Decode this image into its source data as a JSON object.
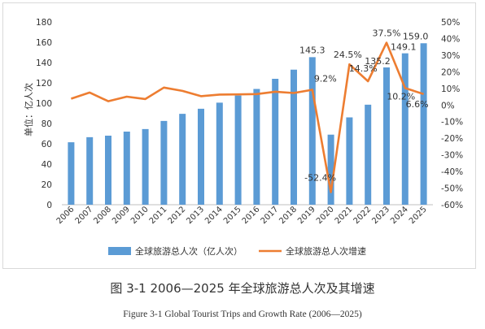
{
  "caption_cn": "图 3-1  2006—2025 年全球旅游总人次及其增速",
  "caption_en": "Figure 3-1  Global Tourist Trips and Growth Rate (2006—2025)",
  "chart_data": {
    "type": "bar",
    "categories": [
      "2006",
      "2007",
      "2008",
      "2009",
      "2010",
      "2011",
      "2012",
      "2013",
      "2014",
      "2015",
      "2016",
      "2017",
      "2018",
      "2019",
      "2020",
      "2021",
      "2022",
      "2023",
      "2024",
      "2025"
    ],
    "ylabel": "单位：亿人次",
    "ylim": [
      0,
      180
    ],
    "y2lim": [
      -60,
      50
    ],
    "y_ticks": [
      "0",
      "20",
      "40",
      "60",
      "80",
      "100",
      "120",
      "140",
      "160",
      "180"
    ],
    "y2_ticks": [
      "-60%",
      "-50%",
      "-40%",
      "-30%",
      "-20%",
      "-10%",
      "0%",
      "10%",
      "20%",
      "30%",
      "40%",
      "50%"
    ],
    "grid": false,
    "legend_position": "bottom",
    "colors": {
      "bar": "#5b9bd5",
      "line": "#ed7d31"
    },
    "series": [
      {
        "name": "全球旅游总人次（亿人次）",
        "type": "bar",
        "axis": "left",
        "values": [
          61.5,
          66.5,
          68,
          72,
          74.5,
          82.5,
          89.5,
          94.5,
          100.5,
          107.5,
          114,
          124,
          133,
          145.3,
          69,
          86,
          98.5,
          135.2,
          149.1,
          159.0
        ]
      },
      {
        "name": "全球旅游总人次增速",
        "type": "line",
        "axis": "right",
        "values": [
          3.8,
          7.5,
          2.3,
          5.0,
          3.6,
          10.5,
          8.5,
          5.3,
          6.3,
          6.4,
          6.6,
          8.0,
          7.2,
          9.2,
          -52.4,
          24.5,
          14.3,
          37.5,
          10.2,
          6.6
        ]
      }
    ],
    "data_labels": [
      {
        "series": 0,
        "index": 13,
        "text": "145.3"
      },
      {
        "series": 1,
        "index": 13,
        "text": "9.2%"
      },
      {
        "series": 1,
        "index": 14,
        "text": "-52.4%"
      },
      {
        "series": 1,
        "index": 15,
        "text": "24.5%"
      },
      {
        "series": 1,
        "index": 16,
        "text": "14.3%"
      },
      {
        "series": 0,
        "index": 17,
        "text": "135.2"
      },
      {
        "series": 1,
        "index": 17,
        "text": "37.5%"
      },
      {
        "series": 0,
        "index": 18,
        "text": "149.1"
      },
      {
        "series": 1,
        "index": 18,
        "text": "10.2%"
      },
      {
        "series": 0,
        "index": 19,
        "text": "159.0"
      },
      {
        "series": 1,
        "index": 19,
        "text": "6.6%"
      }
    ]
  }
}
